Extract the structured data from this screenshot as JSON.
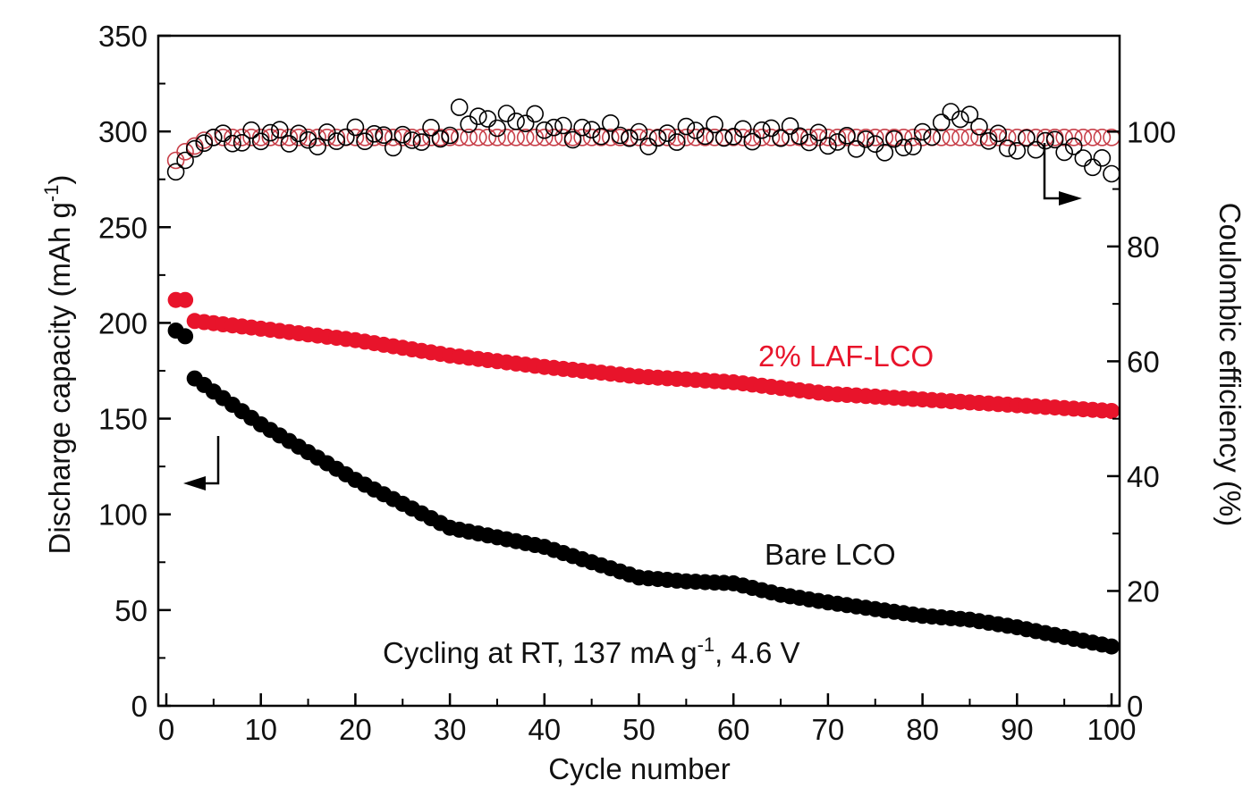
{
  "chart_data": {
    "type": "scatter",
    "xlabel": "Cycle number",
    "ylabel_left": "Discharge capacity (mAh g",
    "ylabel_left_sup": "-1",
    "ylabel_left_end": ")",
    "ylabel_right": "Coulombic efficiency (%)",
    "xlim": [
      0,
      100
    ],
    "ylim_left": [
      0,
      350
    ],
    "ylim_right": [
      0,
      116.7
    ],
    "x_ticks": [
      0,
      10,
      20,
      30,
      40,
      50,
      60,
      70,
      80,
      90,
      100
    ],
    "y_left_ticks": [
      0,
      50,
      100,
      150,
      200,
      250,
      300,
      350
    ],
    "y_right_ticks": [
      0,
      20,
      40,
      60,
      80,
      100
    ],
    "annotations": {
      "laf_label": "2% LAF-LCO",
      "bare_label": "Bare LCO",
      "condition_pre": "Cycling at RT, 137 mA g",
      "condition_sup": "-1",
      "condition_post": ", 4.6 V"
    },
    "series": [
      {
        "name": "2% LAF-LCO discharge capacity",
        "axis": "left",
        "color": "#e8142b",
        "marker": "filled-circle",
        "key_points": [
          [
            1,
            212
          ],
          [
            2,
            212
          ],
          [
            3,
            201
          ],
          [
            10,
            197
          ],
          [
            20,
            191
          ],
          [
            30,
            183
          ],
          [
            40,
            177
          ],
          [
            50,
            172
          ],
          [
            60,
            169
          ],
          [
            70,
            163
          ],
          [
            80,
            160
          ],
          [
            90,
            157
          ],
          [
            100,
            154
          ]
        ]
      },
      {
        "name": "Bare LCO discharge capacity",
        "axis": "left",
        "color": "#000000",
        "marker": "filled-circle",
        "key_points": [
          [
            1,
            196
          ],
          [
            2,
            193
          ],
          [
            3,
            171
          ],
          [
            10,
            147
          ],
          [
            20,
            118
          ],
          [
            30,
            93
          ],
          [
            40,
            83
          ],
          [
            50,
            67
          ],
          [
            55,
            65
          ],
          [
            60,
            64
          ],
          [
            65,
            58
          ],
          [
            70,
            54
          ],
          [
            80,
            47
          ],
          [
            85,
            45
          ],
          [
            90,
            41
          ],
          [
            100,
            31
          ]
        ]
      },
      {
        "name": "2% LAF-LCO coulombic efficiency",
        "axis": "right",
        "color": "#c8404a",
        "marker": "open-circle",
        "key_points": [
          [
            1,
            95
          ],
          [
            2,
            96.5
          ],
          [
            3,
            97.5
          ],
          [
            4,
            98.5
          ],
          [
            5,
            99
          ],
          [
            100,
            99
          ]
        ]
      },
      {
        "name": "Bare LCO coulombic efficiency",
        "axis": "right",
        "color": "#000000",
        "marker": "open-circle",
        "key_points": [
          [
            1,
            93
          ],
          [
            2,
            95
          ],
          [
            3,
            97
          ],
          [
            5,
            99
          ],
          [
            30,
            99
          ],
          [
            31,
            103
          ],
          [
            50,
            99
          ],
          [
            60,
            100
          ],
          [
            70,
            99
          ],
          [
            75,
            97
          ],
          [
            80,
            99
          ],
          [
            84,
            103
          ],
          [
            90,
            97
          ],
          [
            95,
            98
          ],
          [
            100,
            93
          ]
        ]
      }
    ]
  }
}
